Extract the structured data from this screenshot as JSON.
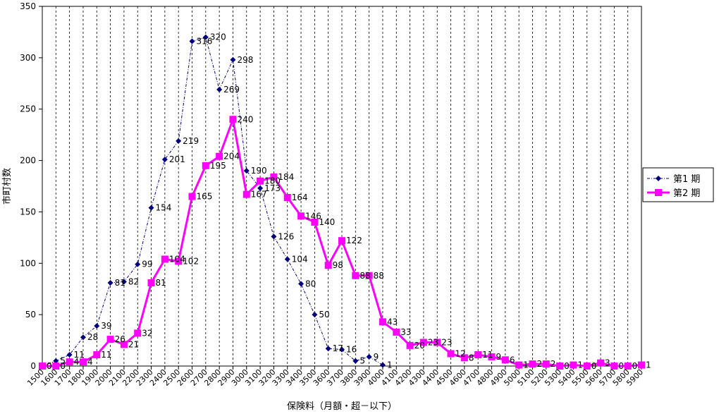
{
  "chart_data": {
    "type": "line",
    "title": "",
    "xlabel": "保険料（月額・超－以下）",
    "ylabel": "市町村数",
    "ylim": [
      0,
      350
    ],
    "yticks": [
      0,
      50,
      100,
      150,
      200,
      250,
      300,
      350
    ],
    "grid": "vertical dashed",
    "legend_position": "right",
    "categories": [
      "1500",
      "1600",
      "1700",
      "1800",
      "1900",
      "2000",
      "2100",
      "2200",
      "2300",
      "2400",
      "2500",
      "2600",
      "2700",
      "2800",
      "2900",
      "3000",
      "3100",
      "3200",
      "3300",
      "3400",
      "3500",
      "3600",
      "3700",
      "3800",
      "3900",
      "4000",
      "4100",
      "4200",
      "4300",
      "4400",
      "4500",
      "4600",
      "4700",
      "4800",
      "4900",
      "5000",
      "5100",
      "5200",
      "5300",
      "5400",
      "5500",
      "5600",
      "5700",
      "5800",
      "5900"
    ],
    "series": [
      {
        "name": "第1 期",
        "color": "#000080",
        "marker": "diamond",
        "line": "dash-dot",
        "values": [
          0,
          5,
          11,
          28,
          39,
          81,
          82,
          99,
          154,
          201,
          219,
          316,
          320,
          269,
          298,
          190,
          173,
          126,
          104,
          80,
          50,
          17,
          16,
          5,
          9,
          1,
          null,
          null,
          null,
          null,
          null,
          null,
          null,
          null,
          null,
          null,
          null,
          null,
          null,
          null,
          null,
          null,
          null,
          null,
          null
        ],
        "label_values": [
          "0",
          "5",
          "11",
          "28",
          "39",
          "81",
          "82",
          "99",
          "154",
          "201",
          "219",
          "316",
          "320",
          "269",
          "298",
          "190",
          "173",
          "126",
          "104",
          "80",
          "50",
          "17",
          "16",
          "5",
          "9",
          "1"
        ]
      },
      {
        "name": "第2 期",
        "color": "#ff00ff",
        "marker": "square",
        "line": "solid",
        "values": [
          0,
          0,
          4,
          4,
          11,
          26,
          21,
          32,
          81,
          104,
          102,
          165,
          195,
          204,
          240,
          167,
          180,
          184,
          164,
          146,
          140,
          98,
          122,
          88,
          88,
          43,
          33,
          20,
          23,
          23,
          12,
          8,
          11,
          9,
          6,
          1,
          2,
          2,
          0,
          1,
          0,
          3,
          0,
          0,
          1
        ],
        "label_values": [
          "0",
          "0",
          "4",
          "4",
          "11",
          "26",
          "21",
          "32",
          "81",
          "104",
          "102",
          "165",
          "195",
          "204",
          "240",
          "167",
          "180",
          "184",
          "164",
          "146",
          "140",
          "98",
          "122",
          "88",
          "88",
          "43",
          "33",
          "20",
          "23",
          "23",
          "12",
          "8",
          "11",
          "9",
          "6",
          "1",
          "2",
          "2",
          "0",
          "1",
          "0",
          "3",
          "0",
          "0",
          "1"
        ]
      }
    ]
  }
}
